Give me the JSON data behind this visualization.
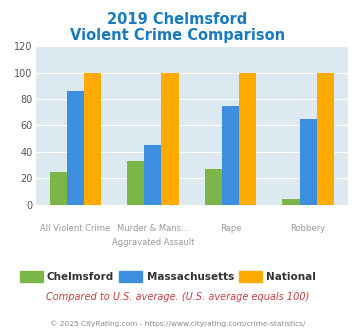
{
  "title_line1": "2019 Chelmsford",
  "title_line2": "Violent Crime Comparison",
  "title_color": "#1a7abf",
  "cat_labels_row1": [
    "",
    "Murder & Mans...",
    "",
    ""
  ],
  "cat_labels_row2": [
    "All Violent Crime",
    "Aggravated Assault",
    "Rape",
    "Robbery"
  ],
  "chelmsford": [
    25,
    33,
    27,
    4
  ],
  "massachusetts": [
    86,
    45,
    75,
    65
  ],
  "national": [
    100,
    100,
    100,
    100
  ],
  "chelmsford_color": "#7ab648",
  "massachusetts_color": "#3c8fde",
  "national_color": "#ffaa00",
  "ylim": [
    0,
    120
  ],
  "yticks": [
    0,
    20,
    40,
    60,
    80,
    100,
    120
  ],
  "plot_bg": "#dde9f0",
  "grid_color": "#ffffff",
  "footer_text": "Compared to U.S. average. (U.S. average equals 100)",
  "copyright_text": "© 2025 CityRating.com - https://www.cityrating.com/crime-statistics/",
  "footer_color": "#c04040",
  "copyright_color": "#888888",
  "legend_labels": [
    "Chelmsford",
    "Massachusetts",
    "National"
  ],
  "bar_width": 0.22
}
